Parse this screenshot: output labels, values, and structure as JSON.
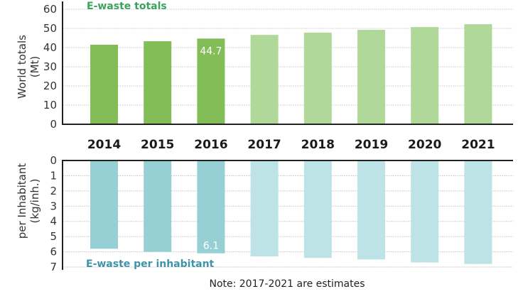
{
  "chart_data": [
    {
      "type": "bar",
      "title": "E-waste totals",
      "ylabel": "World totals (Mt)",
      "xlabel": "",
      "categories": [
        "2014",
        "2015",
        "2016",
        "2017",
        "2018",
        "2019",
        "2020",
        "2021"
      ],
      "values": [
        41.5,
        43.3,
        44.7,
        46.6,
        47.8,
        49.3,
        50.7,
        52.2
      ],
      "estimated": [
        false,
        false,
        false,
        true,
        true,
        true,
        true,
        true
      ],
      "ylim": [
        0,
        60
      ],
      "yticks": [
        "0",
        "10",
        "20",
        "30",
        "40",
        "50",
        "60"
      ],
      "data_labels": [
        {
          "category": "2016",
          "text": "44.7"
        }
      ],
      "grid": true,
      "colors": {
        "actual": "#82bd58",
        "estimate": "#b0d898",
        "title": "#3aa35c"
      }
    },
    {
      "type": "bar",
      "title": "E-waste per inhabitant",
      "ylabel": "per Inhabitant (kg/inh.)",
      "xlabel": "",
      "orientation": "inverted",
      "categories": [
        "2014",
        "2015",
        "2016",
        "2017",
        "2018",
        "2019",
        "2020",
        "2021"
      ],
      "values": [
        5.8,
        6.0,
        6.1,
        6.3,
        6.4,
        6.5,
        6.7,
        6.8
      ],
      "estimated": [
        false,
        false,
        false,
        true,
        true,
        true,
        true,
        true
      ],
      "ylim": [
        0,
        7
      ],
      "yticks": [
        "0",
        "1",
        "2",
        "3",
        "4",
        "5",
        "6",
        "7"
      ],
      "data_labels": [
        {
          "category": "2016",
          "text": "6.1"
        }
      ],
      "grid": true,
      "colors": {
        "actual": "#96d0d4",
        "estimate": "#bde3e6",
        "title": "#3f93a8"
      }
    }
  ],
  "note": "Note: 2017-2021 are estimates"
}
